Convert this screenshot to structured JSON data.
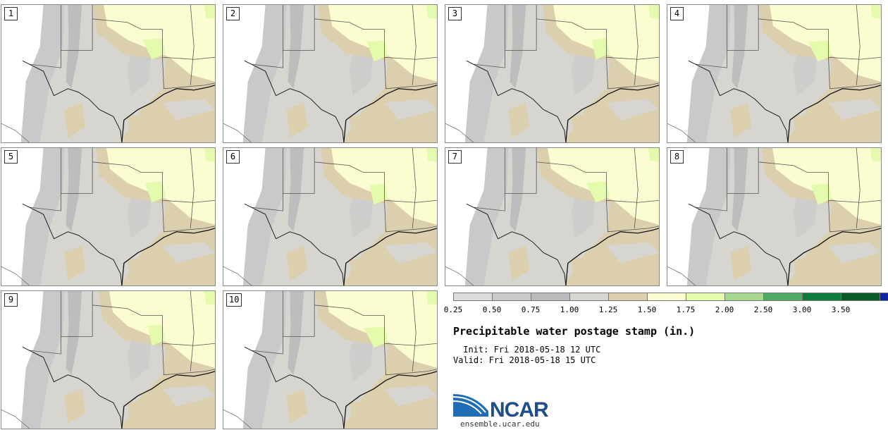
{
  "title": "Precipitable water postage stamp (in.)",
  "init": " Init: Fri 2018-05-18 12 UTC",
  "valid": "Valid: Fri 2018-05-18 15 UTC",
  "logo_text": "NCAR",
  "website": "ensemble.ucar.edu",
  "members": [
    "1",
    "2",
    "3",
    "4",
    "5",
    "6",
    "7",
    "8",
    "9",
    "10"
  ],
  "colorbar": {
    "ticks": [
      "0.25",
      "0.50",
      "0.75",
      "1.00",
      "1.25",
      "1.50",
      "1.75",
      "2.00",
      "2.50",
      "3.00",
      "3.50"
    ],
    "colors": [
      "#dcdcdc",
      "#cacaca",
      "#bbbbbb",
      "#d6d5cf",
      "#dccfae",
      "#fbfdd0",
      "#e4fbae",
      "#a7d98f",
      "#4caa63",
      "#0b7a3a",
      "#0a5a28",
      "#0b25a6"
    ]
  }
}
